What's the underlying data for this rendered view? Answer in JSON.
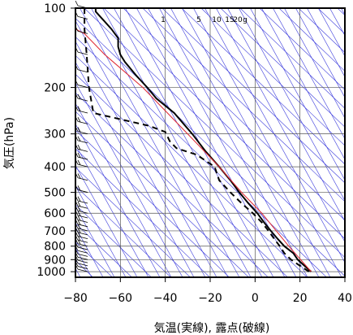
{
  "chart_data": {
    "type": "line",
    "subtype": "skew-T log-P sounding",
    "xlabel": "気温(実線), 露点(破線)",
    "ylabel": "気圧(hPa)",
    "xlim": [
      -80,
      40
    ],
    "ylim": [
      1050,
      100
    ],
    "y_scale": "log",
    "x_ticks": [
      -80,
      -60,
      -40,
      -20,
      0,
      20,
      40
    ],
    "x_tick_labels": [
      "−80",
      "−60",
      "−40",
      "−20",
      "0",
      "20",
      "40"
    ],
    "y_ticks": [
      100,
      200,
      300,
      400,
      500,
      600,
      700,
      800,
      900,
      1000
    ],
    "y_tick_labels": [
      "100",
      "200",
      "300",
      "400",
      "500",
      "600",
      "700",
      "800",
      "900",
      "1000"
    ],
    "mixing_ratio_labels": [
      "1",
      "5",
      "10",
      "15",
      "20",
      "g"
    ],
    "grid": true,
    "guide_line_color": "#3a3adc",
    "parcel_color": "#e0303a",
    "series": [
      {
        "role": "temperature",
        "style": "solid",
        "points": [
          {
            "p": 1000,
            "t": 25
          },
          {
            "p": 950,
            "t": 22
          },
          {
            "p": 900,
            "t": 19
          },
          {
            "p": 850,
            "t": 17
          },
          {
            "p": 800,
            "t": 13
          },
          {
            "p": 750,
            "t": 10
          },
          {
            "p": 700,
            "t": 7
          },
          {
            "p": 650,
            "t": 4
          },
          {
            "p": 600,
            "t": 1
          },
          {
            "p": 550,
            "t": -3
          },
          {
            "p": 500,
            "t": -7
          },
          {
            "p": 450,
            "t": -11
          },
          {
            "p": 400,
            "t": -16
          },
          {
            "p": 350,
            "t": -22
          },
          {
            "p": 300,
            "t": -28
          },
          {
            "p": 250,
            "t": -36
          },
          {
            "p": 220,
            "t": -44
          },
          {
            "p": 200,
            "t": -48
          },
          {
            "p": 180,
            "t": -53
          },
          {
            "p": 160,
            "t": -58
          },
          {
            "p": 150,
            "t": -60
          },
          {
            "p": 140,
            "t": -61
          },
          {
            "p": 130,
            "t": -61
          },
          {
            "p": 120,
            "t": -64
          },
          {
            "p": 110,
            "t": -68
          },
          {
            "p": 103,
            "t": -71
          },
          {
            "p": 100,
            "t": -71
          }
        ]
      },
      {
        "role": "dewpoint",
        "style": "dashed",
        "points": [
          {
            "p": 1000,
            "t": 24
          },
          {
            "p": 950,
            "t": 20
          },
          {
            "p": 900,
            "t": 16
          },
          {
            "p": 850,
            "t": 13
          },
          {
            "p": 800,
            "t": 11
          },
          {
            "p": 760,
            "t": 9
          },
          {
            "p": 700,
            "t": 6
          },
          {
            "p": 650,
            "t": 3
          },
          {
            "p": 600,
            "t": -1
          },
          {
            "p": 550,
            "t": -6
          },
          {
            "p": 500,
            "t": -11
          },
          {
            "p": 450,
            "t": -16
          },
          {
            "p": 400,
            "t": -18
          },
          {
            "p": 360,
            "t": -26
          },
          {
            "p": 340,
            "t": -35
          },
          {
            "p": 320,
            "t": -38
          },
          {
            "p": 295,
            "t": -40
          },
          {
            "p": 280,
            "t": -47
          },
          {
            "p": 250,
            "t": -72
          },
          {
            "p": 200,
            "t": -74
          },
          {
            "p": 150,
            "t": -75
          },
          {
            "p": 120,
            "t": -76
          },
          {
            "p": 100,
            "t": -76
          }
        ]
      },
      {
        "role": "parcel",
        "style": "solid-thin",
        "points": [
          {
            "p": 1000,
            "t": 25
          },
          {
            "p": 800,
            "t": 15
          },
          {
            "p": 600,
            "t": 3
          },
          {
            "p": 500,
            "t": -6
          },
          {
            "p": 400,
            "t": -16
          },
          {
            "p": 300,
            "t": -30
          },
          {
            "p": 250,
            "t": -39
          },
          {
            "p": 200,
            "t": -50
          },
          {
            "p": 150,
            "t": -67
          },
          {
            "p": 125,
            "t": -76
          },
          {
            "p": 120,
            "t": -80
          }
        ]
      }
    ],
    "wind_barbs": [
      {
        "p": 1000,
        "speed_kt": 10
      },
      {
        "p": 975,
        "speed_kt": 10
      },
      {
        "p": 950,
        "speed_kt": 10
      },
      {
        "p": 925,
        "speed_kt": 10
      },
      {
        "p": 900,
        "speed_kt": 10
      },
      {
        "p": 875,
        "speed_kt": 10
      },
      {
        "p": 850,
        "speed_kt": 10
      },
      {
        "p": 825,
        "speed_kt": 10
      },
      {
        "p": 800,
        "speed_kt": 15
      },
      {
        "p": 775,
        "speed_kt": 15
      },
      {
        "p": 750,
        "speed_kt": 15
      },
      {
        "p": 725,
        "speed_kt": 15
      },
      {
        "p": 700,
        "speed_kt": 15
      },
      {
        "p": 675,
        "speed_kt": 15
      },
      {
        "p": 650,
        "speed_kt": 15
      },
      {
        "p": 625,
        "speed_kt": 15
      },
      {
        "p": 600,
        "speed_kt": 15
      },
      {
        "p": 575,
        "speed_kt": 15
      },
      {
        "p": 550,
        "speed_kt": 15
      },
      {
        "p": 500,
        "speed_kt": 15
      },
      {
        "p": 450,
        "speed_kt": 15
      },
      {
        "p": 400,
        "speed_kt": 15
      },
      {
        "p": 375,
        "speed_kt": 15
      },
      {
        "p": 350,
        "speed_kt": 15
      },
      {
        "p": 325,
        "speed_kt": 15
      },
      {
        "p": 300,
        "speed_kt": 15
      },
      {
        "p": 275,
        "speed_kt": 15
      },
      {
        "p": 250,
        "speed_kt": 15
      },
      {
        "p": 225,
        "speed_kt": 15
      },
      {
        "p": 200,
        "speed_kt": 10
      },
      {
        "p": 175,
        "speed_kt": 10
      },
      {
        "p": 150,
        "speed_kt": 10
      },
      {
        "p": 125,
        "speed_kt": 10
      },
      {
        "p": 110,
        "speed_kt": 10
      },
      {
        "p": 100,
        "speed_kt": 10
      }
    ]
  }
}
